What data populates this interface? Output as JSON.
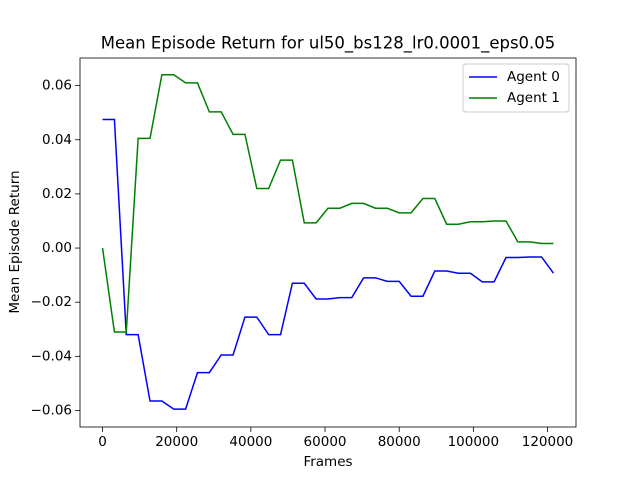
{
  "chart_data": {
    "type": "line",
    "title": "Mean Episode Return for ul50_bs128_lr0.0001_eps0.05",
    "xlabel": "Frames",
    "ylabel": "Mean Episode Return",
    "x": [
      0,
      3200,
      6400,
      9600,
      12800,
      16000,
      19200,
      22400,
      25600,
      28800,
      32000,
      35200,
      38400,
      41600,
      44800,
      48000,
      51200,
      54400,
      57600,
      60800,
      64000,
      67200,
      70400,
      73600,
      76800,
      80000,
      83200,
      86400,
      89600,
      92800,
      96000,
      99200,
      102400,
      105600,
      108800,
      112000,
      115200,
      118400,
      121600
    ],
    "series": [
      {
        "name": "Agent 0",
        "color": "#0000ff",
        "values": [
          0.0475,
          0.0475,
          -0.032,
          -0.032,
          -0.0565,
          -0.0565,
          -0.0595,
          -0.0595,
          -0.046,
          -0.046,
          -0.0395,
          -0.0395,
          -0.0255,
          -0.0255,
          -0.032,
          -0.032,
          -0.013,
          -0.013,
          -0.0188,
          -0.0188,
          -0.0183,
          -0.0183,
          -0.011,
          -0.011,
          -0.0123,
          -0.0123,
          -0.0178,
          -0.0178,
          -0.0085,
          -0.0085,
          -0.0093,
          -0.0093,
          -0.0125,
          -0.0125,
          -0.0035,
          -0.0035,
          -0.0033,
          -0.0033,
          -0.0093
        ]
      },
      {
        "name": "Agent 1",
        "color": "#008000",
        "values": [
          0,
          -0.031,
          -0.031,
          0.0405,
          0.0405,
          0.064,
          0.064,
          0.061,
          0.061,
          0.0503,
          0.0503,
          0.042,
          0.042,
          0.022,
          0.022,
          0.0325,
          0.0325,
          0.0093,
          0.0093,
          0.0147,
          0.0147,
          0.0165,
          0.0165,
          0.0147,
          0.0147,
          0.013,
          0.013,
          0.0183,
          0.0183,
          0.0088,
          0.0088,
          0.0097,
          0.0097,
          0.01,
          0.01,
          0.0023,
          0.0023,
          0.0017,
          0.0017
        ]
      }
    ],
    "xlim": [
      -6080,
      127680
    ],
    "ylim": [
      -0.0661,
      0.0702
    ],
    "xticks": [
      0,
      20000,
      40000,
      60000,
      80000,
      100000,
      120000
    ],
    "yticks": [
      {
        "value": -0.06,
        "label": "−0.06"
      },
      {
        "value": -0.04,
        "label": "−0.04"
      },
      {
        "value": -0.02,
        "label": "−0.02"
      },
      {
        "value": 0,
        "label": "0.00"
      },
      {
        "value": 0.02,
        "label": "0.02"
      },
      {
        "value": 0.04,
        "label": "0.04"
      },
      {
        "value": 0.06,
        "label": "0.06"
      }
    ],
    "grid": false,
    "legend": "upper right"
  }
}
